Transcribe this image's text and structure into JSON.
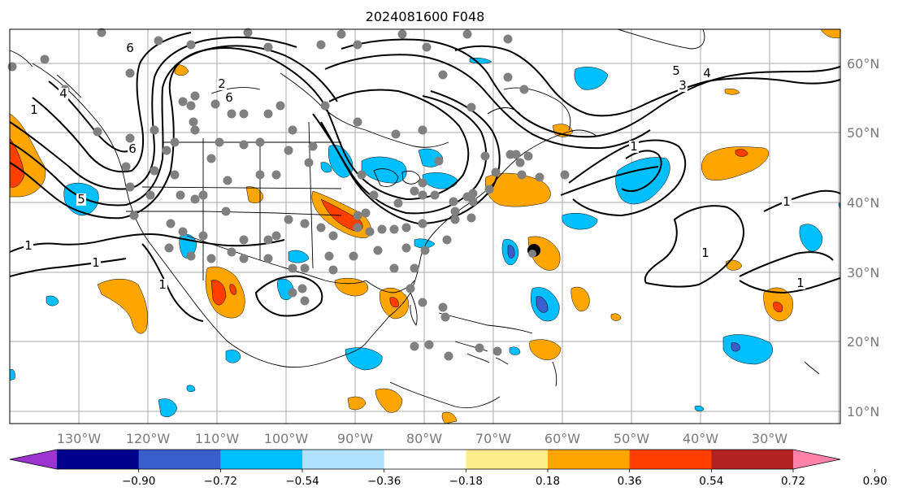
{
  "title": "2024081600 F048",
  "longitude_labels": [
    "130°W",
    "120°W",
    "110°W",
    "100°W",
    "90°W",
    "80°W",
    "70°W",
    "60°W",
    "50°W",
    "40°W",
    "30°W"
  ],
  "latitude_labels": [
    "60°N",
    "50°N",
    "40°N",
    "30°N",
    "20°N",
    "10°N"
  ],
  "contour_labels": [
    "1",
    "4",
    "6",
    "5",
    "1",
    "2",
    "6",
    "5",
    "3",
    "4",
    "1",
    "1",
    "1",
    "1",
    "6",
    "1",
    "1"
  ],
  "colorbar": {
    "tick_labels": [
      "−0.90",
      "−0.72",
      "−0.54",
      "−0.36",
      "−0.18",
      "0.18",
      "0.36",
      "0.54",
      "0.72",
      "0.90"
    ],
    "colors": [
      "#9b34d1",
      "#00008b",
      "#3a5fcd",
      "#00bfff",
      "#b0e2ff",
      "#ffffff",
      "#ffec8b",
      "#ffa500",
      "#ff3e00",
      "#b22222",
      "#ff82ab"
    ]
  },
  "fill_colors": {
    "light_blue": "#00bfff",
    "mid_blue": "#3a5fcd",
    "orange": "#ffa500",
    "red": "#ff3e00",
    "grid": "#a9a9a9",
    "station_dot": "#808080"
  }
}
